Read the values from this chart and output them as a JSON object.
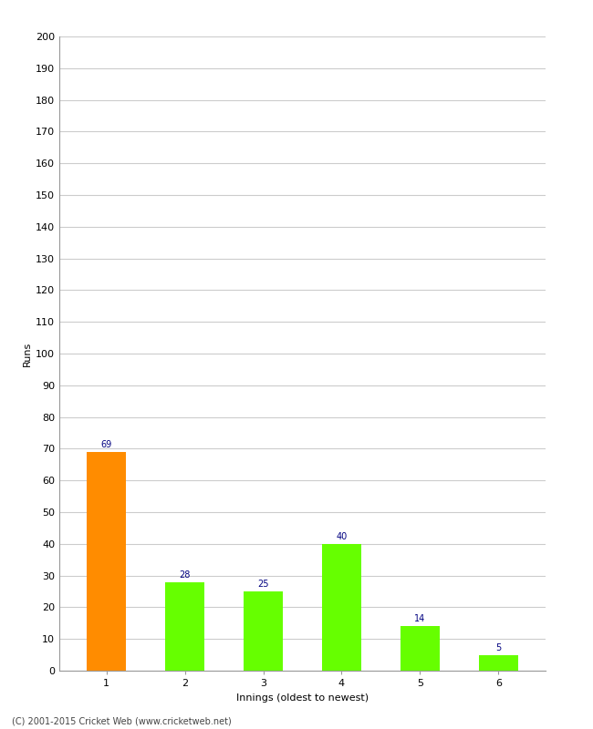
{
  "categories": [
    "1",
    "2",
    "3",
    "4",
    "5",
    "6"
  ],
  "values": [
    69,
    28,
    25,
    40,
    14,
    5
  ],
  "bar_colors": [
    "#FF8C00",
    "#66FF00",
    "#66FF00",
    "#66FF00",
    "#66FF00",
    "#66FF00"
  ],
  "ylabel": "Runs",
  "xlabel": "Innings (oldest to newest)",
  "ylim": [
    0,
    200
  ],
  "yticks": [
    0,
    10,
    20,
    30,
    40,
    50,
    60,
    70,
    80,
    90,
    100,
    110,
    120,
    130,
    140,
    150,
    160,
    170,
    180,
    190,
    200
  ],
  "annotation_color": "#000080",
  "annotation_fontsize": 7,
  "footer": "(C) 2001-2015 Cricket Web (www.cricketweb.net)",
  "background_color": "#FFFFFF",
  "grid_color": "#CCCCCC",
  "bar_width": 0.5,
  "tick_fontsize": 8,
  "label_fontsize": 8
}
